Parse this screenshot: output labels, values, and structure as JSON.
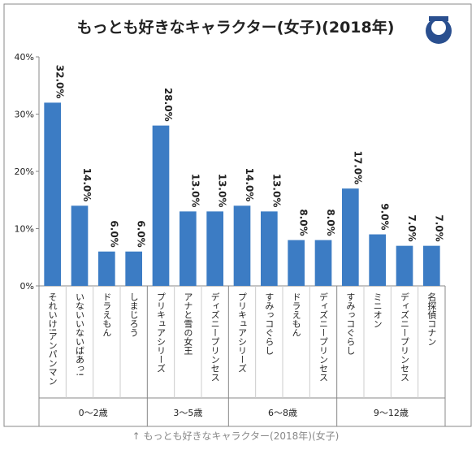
{
  "chart_data": {
    "type": "bar",
    "title": "もっとも好きなキャラクター(女子)(2018年)",
    "caption": "↑ もっとも好きなキャラクター(2018年)(女子)",
    "color": "#3c7cc4",
    "ylim": [
      0,
      40
    ],
    "yticks": [
      {
        "value": 0,
        "label": "0%"
      },
      {
        "value": 10,
        "label": "10%"
      },
      {
        "value": 20,
        "label": "20%"
      },
      {
        "value": 30,
        "label": "30%"
      },
      {
        "value": 40,
        "label": "40%"
      }
    ],
    "groups": [
      {
        "name": "0〜2歳",
        "categories": [
          "それいけ!アンパンマン",
          "いないいないばあっ!",
          "ドラえもん",
          "しまじろう"
        ],
        "values": [
          32.0,
          14.0,
          6.0,
          6.0
        ],
        "value_labels": [
          "32.0%",
          "14.0%",
          "6.0%",
          "6.0%"
        ]
      },
      {
        "name": "3〜5歳",
        "categories": [
          "プリキュアシリーズ",
          "アナと雪の女王",
          "ディズニープリンセス"
        ],
        "values": [
          28.0,
          13.0,
          13.0
        ],
        "value_labels": [
          "28.0%",
          "13.0%",
          "13.0%"
        ]
      },
      {
        "name": "6〜8歳",
        "categories": [
          "プリキュアシリーズ",
          "すみっコぐらし",
          "ドラえもん",
          "ディズニープリンセス"
        ],
        "values": [
          14.0,
          13.0,
          8.0,
          8.0
        ],
        "value_labels": [
          "14.0%",
          "13.0%",
          "8.0%",
          "8.0%"
        ]
      },
      {
        "name": "9〜12歳",
        "categories": [
          "すみっコぐらし",
          "ミニオン",
          "ディズニープリンセス",
          "名探偵コナン"
        ],
        "values": [
          17.0,
          9.0,
          7.0,
          7.0
        ],
        "value_labels": [
          "17.0%",
          "9.0%",
          "7.0%",
          "7.0%"
        ]
      }
    ]
  }
}
